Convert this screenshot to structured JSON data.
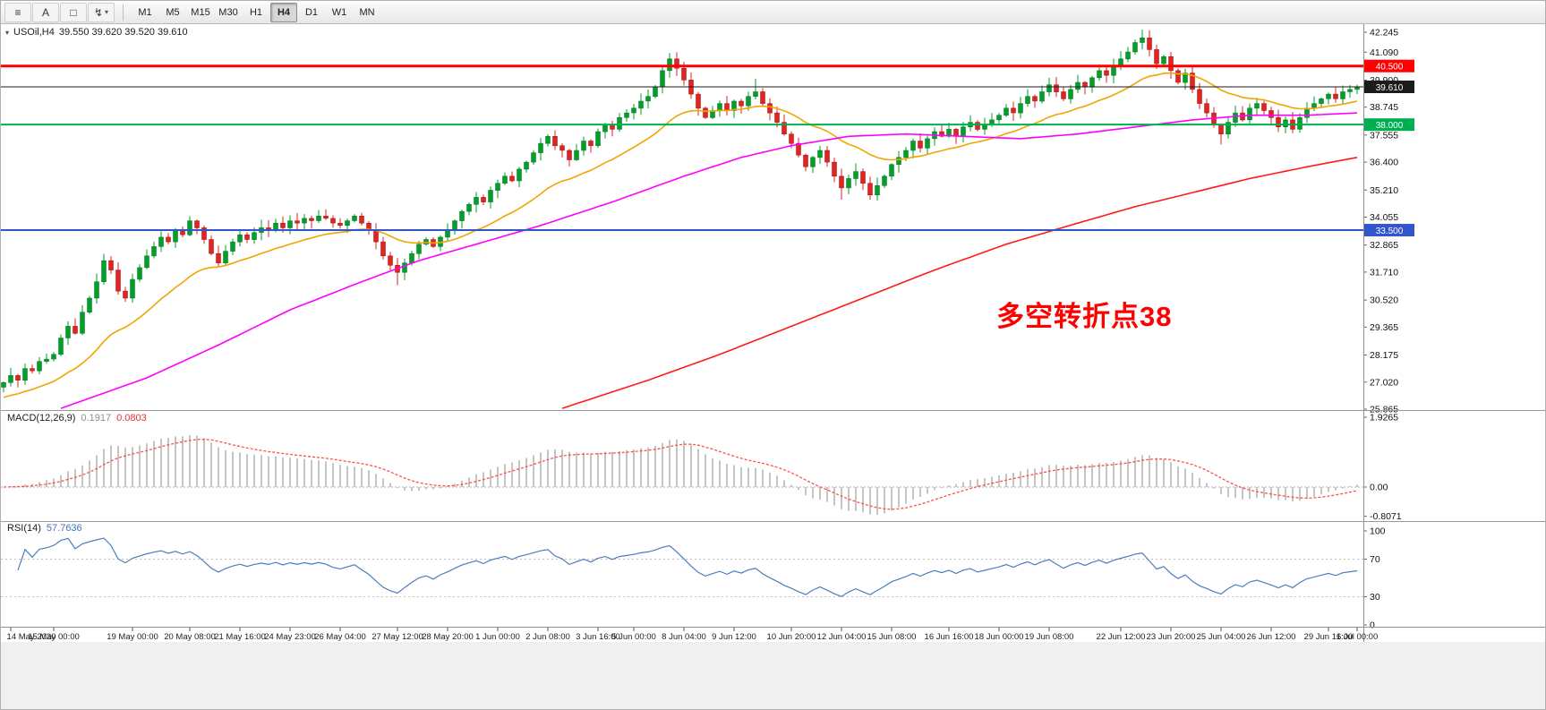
{
  "toolbar": {
    "tools": [
      {
        "name": "chart-list-icon",
        "glyph": "≡"
      },
      {
        "name": "text-tool-button",
        "glyph": "A"
      },
      {
        "name": "label-frame-tool-button",
        "glyph": "□"
      },
      {
        "name": "arrow-tools-dropdown",
        "glyph": "↯",
        "caret": "▾"
      }
    ],
    "timeframes": [
      "M1",
      "M5",
      "M15",
      "M30",
      "H1",
      "H4",
      "D1",
      "W1",
      "MN"
    ],
    "active_timeframe": "H4"
  },
  "chart_header": {
    "dropdown_glyph": "▾",
    "symbol_title": "USOil,H4",
    "ohlc": "39.550 39.620 39.520 39.610"
  },
  "annotation": {
    "text": "多空转折点38",
    "color": "#ff0000"
  },
  "price_axis": {
    "labels": [
      "42.245",
      "41.090",
      "39.900",
      "38.745",
      "37.555",
      "36.400",
      "35.210",
      "34.055",
      "32.865",
      "31.710",
      "30.520",
      "29.365",
      "28.175",
      "27.020",
      "25.865"
    ]
  },
  "hlines": [
    {
      "label": "40.500",
      "value": 40.5,
      "color": "#ff0000",
      "width": 3
    },
    {
      "label": "39.610",
      "value": 39.61,
      "color": "#1b1b1b",
      "width": 1
    },
    {
      "label": "38.000",
      "value": 38.0,
      "color": "#00b050",
      "width": 2
    },
    {
      "label": "33.500",
      "value": 33.5,
      "color": "#3355cc",
      "width": 2
    }
  ],
  "chart_data": {
    "type": "candlestick",
    "symbol": "USOil",
    "timeframe": "H4",
    "title": "USOil,H4",
    "ohlc_display": {
      "open": "39.550",
      "high": "39.620",
      "low": "39.520",
      "close": "39.610"
    },
    "y_max": 42.245,
    "y_min": 25.865,
    "up_color": "#00a02a",
    "down_color": "#e32222",
    "first_open": 26.8,
    "closes": [
      27.0,
      27.3,
      27.1,
      27.6,
      27.5,
      27.9,
      28.0,
      28.2,
      28.9,
      29.4,
      29.1,
      30.0,
      30.6,
      31.3,
      32.2,
      31.8,
      30.9,
      30.6,
      31.4,
      31.9,
      32.4,
      32.8,
      33.2,
      33.0,
      33.5,
      33.3,
      33.9,
      33.6,
      33.1,
      32.5,
      32.1,
      32.6,
      33.0,
      33.3,
      33.1,
      33.4,
      33.6,
      33.5,
      33.8,
      33.6,
      33.9,
      33.8,
      34.0,
      33.9,
      34.1,
      34.0,
      33.8,
      33.7,
      33.9,
      34.1,
      33.8,
      33.5,
      33.0,
      32.4,
      32.0,
      31.7,
      32.1,
      32.5,
      32.9,
      33.1,
      32.8,
      33.2,
      33.5,
      33.9,
      34.3,
      34.6,
      34.9,
      34.7,
      35.2,
      35.5,
      35.8,
      35.6,
      36.1,
      36.4,
      36.8,
      37.2,
      37.5,
      37.1,
      36.9,
      36.5,
      36.9,
      37.3,
      37.1,
      37.7,
      38.0,
      37.8,
      38.3,
      38.5,
      38.7,
      39.0,
      39.2,
      39.6,
      40.3,
      40.8,
      40.4,
      39.9,
      39.3,
      38.7,
      38.3,
      38.6,
      38.9,
      38.6,
      39.0,
      38.8,
      39.2,
      39.4,
      38.9,
      38.5,
      38.1,
      37.6,
      37.2,
      36.7,
      36.2,
      36.6,
      36.9,
      36.4,
      35.8,
      35.3,
      35.7,
      36.0,
      35.5,
      35.0,
      35.4,
      35.8,
      36.3,
      36.6,
      36.9,
      37.3,
      37.0,
      37.4,
      37.7,
      37.5,
      37.8,
      37.5,
      37.9,
      38.1,
      37.8,
      38.0,
      38.2,
      38.4,
      38.7,
      38.5,
      38.9,
      39.2,
      39.0,
      39.4,
      39.7,
      39.4,
      39.1,
      39.5,
      39.8,
      39.6,
      40.0,
      40.3,
      40.1,
      40.5,
      40.8,
      41.1,
      41.5,
      41.7,
      41.2,
      40.6,
      40.9,
      40.3,
      39.8,
      40.2,
      39.5,
      38.9,
      38.5,
      38.0,
      37.6,
      38.1,
      38.5,
      38.2,
      38.7,
      38.9,
      38.6,
      38.3,
      37.9,
      38.2,
      37.8,
      38.3,
      38.7,
      38.9,
      39.1,
      39.3,
      39.1,
      39.4,
      39.5,
      39.61
    ],
    "wick_spikes": {
      "55": {
        "low": 31.15
      },
      "93": {
        "high": 41.05
      },
      "105": {
        "high": 39.95
      },
      "117": {
        "low": 34.8
      },
      "159": {
        "high": 42.05
      },
      "170": {
        "low": 37.15
      }
    },
    "moving_averages": [
      {
        "name": "fast",
        "type": "ema",
        "period": 20,
        "seed": 26.3,
        "color": "#f0a500"
      },
      {
        "name": "mid",
        "color": "#ff00ff",
        "waypoints": [
          [
            8,
            25.9
          ],
          [
            20,
            27.2
          ],
          [
            30,
            28.6
          ],
          [
            40,
            30.1
          ],
          [
            50,
            31.3
          ],
          [
            58,
            32.2
          ],
          [
            66,
            32.9
          ],
          [
            75,
            33.7
          ],
          [
            85,
            34.7
          ],
          [
            95,
            35.8
          ],
          [
            103,
            36.6
          ],
          [
            110,
            37.1
          ],
          [
            118,
            37.5
          ],
          [
            126,
            37.6
          ],
          [
            134,
            37.5
          ],
          [
            142,
            37.4
          ],
          [
            150,
            37.6
          ],
          [
            158,
            37.9
          ],
          [
            166,
            38.2
          ],
          [
            174,
            38.4
          ],
          [
            182,
            38.4
          ],
          [
            189,
            38.5
          ]
        ]
      },
      {
        "name": "long",
        "color": "#ff1a1a",
        "waypoints": [
          [
            78,
            25.9
          ],
          [
            90,
            27.1
          ],
          [
            100,
            28.2
          ],
          [
            110,
            29.4
          ],
          [
            120,
            30.6
          ],
          [
            130,
            31.8
          ],
          [
            140,
            32.9
          ],
          [
            150,
            33.8
          ],
          [
            158,
            34.5
          ],
          [
            166,
            35.1
          ],
          [
            174,
            35.7
          ],
          [
            182,
            36.2
          ],
          [
            189,
            36.6
          ]
        ]
      }
    ],
    "time_labels": [
      [
        "14 May 2020",
        1
      ],
      [
        "15 May 00:00",
        7
      ],
      [
        "19 May 00:00",
        18
      ],
      [
        "20 May 08:00",
        26
      ],
      [
        "21 May 16:00",
        33
      ],
      [
        "24 May 23:00",
        40
      ],
      [
        "26 May 04:00",
        47
      ],
      [
        "27 May 12:00",
        55
      ],
      [
        "28 May 20:00",
        62
      ],
      [
        "1 Jun 00:00",
        69
      ],
      [
        "2 Jun 08:00",
        76
      ],
      [
        "3 Jun 16:00",
        83
      ],
      [
        "5 Jun 00:00",
        88
      ],
      [
        "8 Jun 04:00",
        95
      ],
      [
        "9 Jun 12:00",
        102
      ],
      [
        "10 Jun 20:00",
        110
      ],
      [
        "12 Jun 04:00",
        117
      ],
      [
        "15 Jun 08:00",
        124
      ],
      [
        "16 Jun 16:00",
        132
      ],
      [
        "18 Jun 00:00",
        139
      ],
      [
        "19 Jun 08:00",
        146
      ],
      [
        "22 Jun 12:00",
        156
      ],
      [
        "23 Jun 20:00",
        163
      ],
      [
        "25 Jun 04:00",
        170
      ],
      [
        "26 Jun 12:00",
        177
      ],
      [
        "29 Jun 16:00",
        185
      ],
      [
        "1 Jul 00:00",
        189
      ]
    ],
    "macd": {
      "name": "MACD(12,26,9)",
      "value_main": "0.1917",
      "value_signal": "0.0803",
      "fast": 12,
      "slow": 26,
      "signal": 9,
      "hist_color": "#c4c4c4",
      "signal_color": "#ff4d4d",
      "axis_labels": [
        [
          "1.9265",
          1.9265
        ],
        [
          "0.00",
          0
        ],
        [
          "-0.8071",
          -0.8071
        ]
      ]
    },
    "rsi": {
      "name": "RSI(14)",
      "value": "57.7636",
      "period": 14,
      "color": "#4a7ebb",
      "levels": [
        70,
        30
      ],
      "axis_labels": [
        [
          "100",
          100
        ],
        [
          "70",
          70
        ],
        [
          "30",
          30
        ],
        [
          "0",
          0
        ]
      ]
    }
  }
}
